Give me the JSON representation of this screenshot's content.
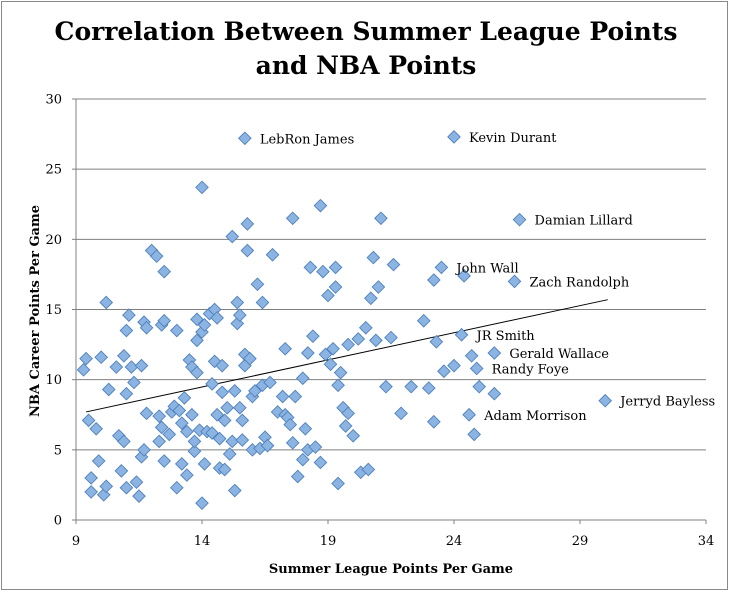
{
  "chart_data": {
    "type": "scatter",
    "title": [
      "Correlation Between Summer League Points",
      "and NBA Points"
    ],
    "xlabel": "Summer League Points Per Game",
    "ylabel": "NBA Career Points Per Game",
    "xlim": [
      9,
      34
    ],
    "ylim": [
      0,
      30
    ],
    "xticks": [
      9,
      14,
      19,
      24,
      29,
      34
    ],
    "yticks": [
      0,
      5,
      10,
      15,
      20,
      25,
      30
    ],
    "grid": "horizontal",
    "legend": "none",
    "marker_color": "#8cb4e2",
    "marker_edge_color": "#4f81bd",
    "trendline": {
      "type": "linear",
      "from": [
        9.4,
        7.7
      ],
      "to": [
        30.1,
        15.7
      ]
    },
    "labeled_points": [
      {
        "name": "LebRon James",
        "x": 15.7,
        "y": 27.2
      },
      {
        "name": "Kevin Durant",
        "x": 24.0,
        "y": 27.3
      },
      {
        "name": "Damian Lillard",
        "x": 26.6,
        "y": 21.4
      },
      {
        "name": "John Wall",
        "x": 23.5,
        "y": 18.0
      },
      {
        "name": "Zach Randolph",
        "x": 26.4,
        "y": 17.0
      },
      {
        "name": "JR Smith",
        "x": 24.3,
        "y": 13.2
      },
      {
        "name": "Gerald Wallace",
        "x": 25.6,
        "y": 11.9
      },
      {
        "name": "Randy Foye",
        "x": 24.9,
        "y": 10.8
      },
      {
        "name": "Jerryd Bayless",
        "x": 30.0,
        "y": 8.5
      },
      {
        "name": "Adam Morrison",
        "x": 24.6,
        "y": 7.5
      }
    ],
    "points": [
      [
        9.3,
        10.7
      ],
      [
        9.4,
        11.5
      ],
      [
        9.5,
        7.1
      ],
      [
        9.6,
        3.0
      ],
      [
        9.6,
        2.0
      ],
      [
        9.8,
        6.5
      ],
      [
        9.9,
        4.2
      ],
      [
        10.0,
        11.6
      ],
      [
        10.1,
        1.8
      ],
      [
        10.2,
        2.4
      ],
      [
        10.3,
        9.3
      ],
      [
        10.2,
        15.5
      ],
      [
        10.6,
        10.9
      ],
      [
        10.7,
        6.0
      ],
      [
        10.8,
        3.5
      ],
      [
        10.9,
        5.6
      ],
      [
        10.9,
        11.7
      ],
      [
        11.0,
        2.3
      ],
      [
        11.0,
        9.0
      ],
      [
        11.0,
        13.5
      ],
      [
        11.1,
        14.6
      ],
      [
        11.2,
        10.9
      ],
      [
        11.3,
        9.8
      ],
      [
        11.4,
        2.7
      ],
      [
        11.5,
        1.7
      ],
      [
        11.6,
        11.0
      ],
      [
        11.6,
        4.5
      ],
      [
        11.7,
        14.1
      ],
      [
        11.7,
        5.0
      ],
      [
        11.8,
        7.6
      ],
      [
        11.8,
        13.7
      ],
      [
        12.0,
        19.2
      ],
      [
        12.2,
        18.8
      ],
      [
        12.3,
        5.6
      ],
      [
        12.3,
        7.4
      ],
      [
        12.4,
        6.6
      ],
      [
        12.4,
        13.9
      ],
      [
        12.5,
        4.2
      ],
      [
        12.5,
        17.7
      ],
      [
        12.5,
        14.2
      ],
      [
        12.7,
        6.1
      ],
      [
        12.8,
        7.7
      ],
      [
        12.9,
        8.1
      ],
      [
        13.0,
        2.3
      ],
      [
        13.0,
        13.5
      ],
      [
        13.1,
        7.8
      ],
      [
        13.2,
        4.0
      ],
      [
        13.2,
        6.9
      ],
      [
        13.3,
        8.7
      ],
      [
        13.4,
        3.2
      ],
      [
        13.4,
        6.3
      ],
      [
        13.5,
        11.4
      ],
      [
        13.6,
        10.9
      ],
      [
        13.6,
        7.5
      ],
      [
        13.7,
        4.9
      ],
      [
        13.7,
        5.6
      ],
      [
        13.8,
        10.5
      ],
      [
        13.8,
        12.8
      ],
      [
        13.8,
        14.3
      ],
      [
        13.9,
        6.4
      ],
      [
        14.0,
        13.4
      ],
      [
        14.0,
        1.2
      ],
      [
        14.0,
        23.7
      ],
      [
        14.1,
        13.9
      ],
      [
        14.1,
        4.0
      ],
      [
        14.2,
        6.3
      ],
      [
        14.3,
        14.7
      ],
      [
        14.4,
        6.2
      ],
      [
        14.4,
        9.7
      ],
      [
        14.5,
        11.3
      ],
      [
        14.5,
        15.0
      ],
      [
        14.6,
        14.4
      ],
      [
        14.6,
        7.5
      ],
      [
        14.7,
        3.7
      ],
      [
        14.7,
        5.8
      ],
      [
        14.8,
        9.1
      ],
      [
        14.8,
        11.0
      ],
      [
        14.9,
        3.6
      ],
      [
        14.9,
        7.1
      ],
      [
        15.0,
        8.0
      ],
      [
        15.1,
        4.7
      ],
      [
        15.2,
        20.2
      ],
      [
        15.2,
        5.6
      ],
      [
        15.3,
        2.1
      ],
      [
        15.3,
        9.2
      ],
      [
        15.4,
        14.0
      ],
      [
        15.4,
        15.5
      ],
      [
        15.5,
        14.6
      ],
      [
        15.5,
        8.0
      ],
      [
        15.6,
        5.7
      ],
      [
        15.6,
        7.1
      ],
      [
        15.7,
        11.0
      ],
      [
        15.7,
        11.8
      ],
      [
        15.8,
        21.1
      ],
      [
        15.8,
        19.2
      ],
      [
        15.9,
        11.5
      ],
      [
        16.0,
        8.8
      ],
      [
        16.0,
        5.0
      ],
      [
        16.1,
        9.2
      ],
      [
        16.2,
        16.8
      ],
      [
        16.3,
        5.1
      ],
      [
        16.4,
        15.5
      ],
      [
        16.4,
        9.6
      ],
      [
        16.5,
        5.9
      ],
      [
        16.6,
        5.3
      ],
      [
        16.7,
        9.8
      ],
      [
        16.8,
        18.9
      ],
      [
        17.0,
        7.7
      ],
      [
        17.2,
        8.8
      ],
      [
        17.3,
        12.2
      ],
      [
        17.3,
        7.5
      ],
      [
        17.4,
        7.3
      ],
      [
        17.5,
        6.8
      ],
      [
        17.6,
        21.5
      ],
      [
        17.6,
        5.5
      ],
      [
        17.7,
        8.8
      ],
      [
        17.8,
        3.1
      ],
      [
        18.0,
        10.1
      ],
      [
        18.0,
        4.3
      ],
      [
        18.1,
        6.5
      ],
      [
        18.2,
        5.0
      ],
      [
        18.2,
        11.9
      ],
      [
        18.3,
        18.0
      ],
      [
        18.4,
        13.1
      ],
      [
        18.5,
        5.2
      ],
      [
        18.7,
        22.4
      ],
      [
        18.7,
        4.1
      ],
      [
        18.8,
        17.7
      ],
      [
        18.9,
        11.8
      ],
      [
        19.0,
        16.0
      ],
      [
        19.1,
        11.1
      ],
      [
        19.2,
        12.2
      ],
      [
        19.3,
        18.0
      ],
      [
        19.3,
        16.6
      ],
      [
        19.4,
        9.6
      ],
      [
        19.4,
        2.6
      ],
      [
        19.5,
        10.5
      ],
      [
        19.6,
        8.0
      ],
      [
        19.7,
        6.7
      ],
      [
        19.8,
        7.6
      ],
      [
        19.8,
        12.5
      ],
      [
        20.0,
        6.0
      ],
      [
        20.2,
        12.9
      ],
      [
        20.3,
        3.4
      ],
      [
        20.5,
        13.7
      ],
      [
        20.6,
        3.6
      ],
      [
        20.7,
        15.8
      ],
      [
        20.8,
        18.7
      ],
      [
        20.9,
        12.8
      ],
      [
        21.0,
        16.6
      ],
      [
        21.1,
        21.5
      ],
      [
        21.3,
        9.5
      ],
      [
        21.5,
        13.0
      ],
      [
        21.6,
        18.2
      ],
      [
        21.9,
        7.6
      ],
      [
        22.3,
        9.5
      ],
      [
        22.8,
        14.2
      ],
      [
        23.2,
        7.0
      ],
      [
        23.0,
        9.4
      ],
      [
        23.2,
        17.1
      ],
      [
        23.3,
        12.7
      ],
      [
        23.6,
        10.6
      ],
      [
        24.0,
        11.0
      ],
      [
        24.4,
        17.4
      ],
      [
        24.7,
        11.7
      ],
      [
        24.8,
        6.1
      ],
      [
        25.0,
        9.5
      ],
      [
        25.6,
        9.0
      ]
    ]
  }
}
